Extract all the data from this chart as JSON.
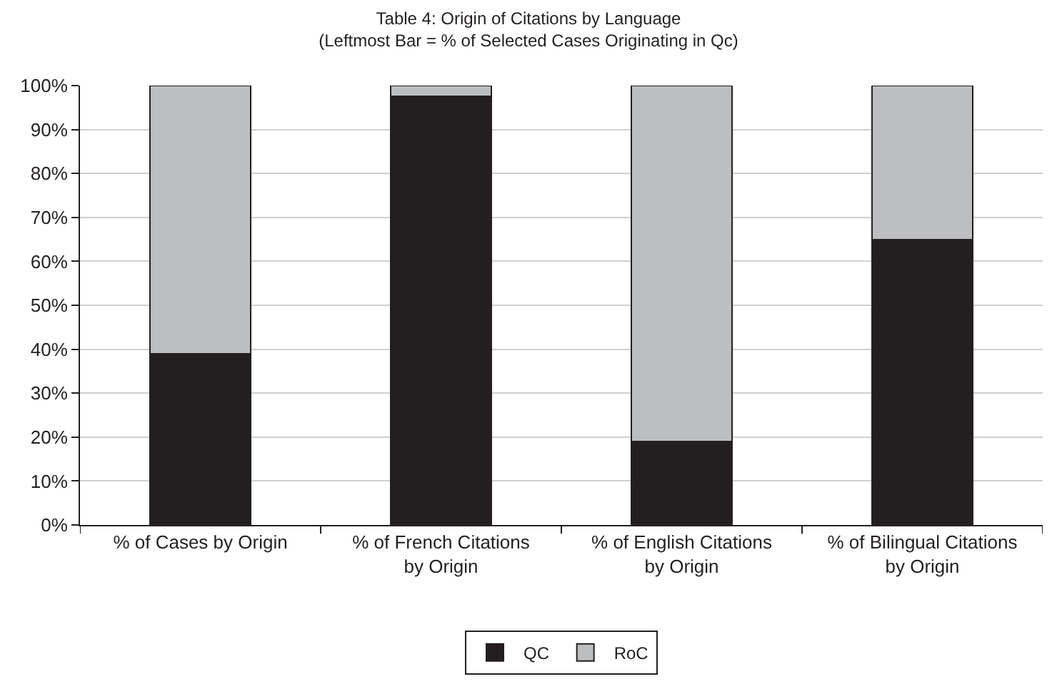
{
  "chart_data": {
    "type": "bar",
    "title": "Table 4: Origin of Citations by Language",
    "subtitle": "(Leftmost Bar = % of Selected Cases Originating in Qc)",
    "categories": [
      "% of Cases by Origin",
      "% of French Citations by Origin",
      "% of English Citations by Origin",
      "% of Bilingual Citations by Origin"
    ],
    "stacked": true,
    "series": [
      {
        "name": "QC",
        "color": "#231f20",
        "values": [
          39,
          97.5,
          19,
          65
        ]
      },
      {
        "name": "RoC",
        "color": "#bcbec0",
        "values": [
          61,
          2.5,
          81,
          35
        ]
      }
    ],
    "ylim": [
      0,
      100
    ],
    "yticks": [
      {
        "value": 0,
        "label": "0%"
      },
      {
        "value": 10,
        "label": "10%"
      },
      {
        "value": 20,
        "label": "20%"
      },
      {
        "value": 30,
        "label": "30%"
      },
      {
        "value": 40,
        "label": "40%"
      },
      {
        "value": 50,
        "label": "50%"
      },
      {
        "value": 60,
        "label": "60%"
      },
      {
        "value": 70,
        "label": "70%"
      },
      {
        "value": 80,
        "label": "80%"
      },
      {
        "value": 90,
        "label": "90%"
      },
      {
        "value": 100,
        "label": "100%"
      }
    ],
    "grid": "y",
    "legend": "bottom"
  }
}
